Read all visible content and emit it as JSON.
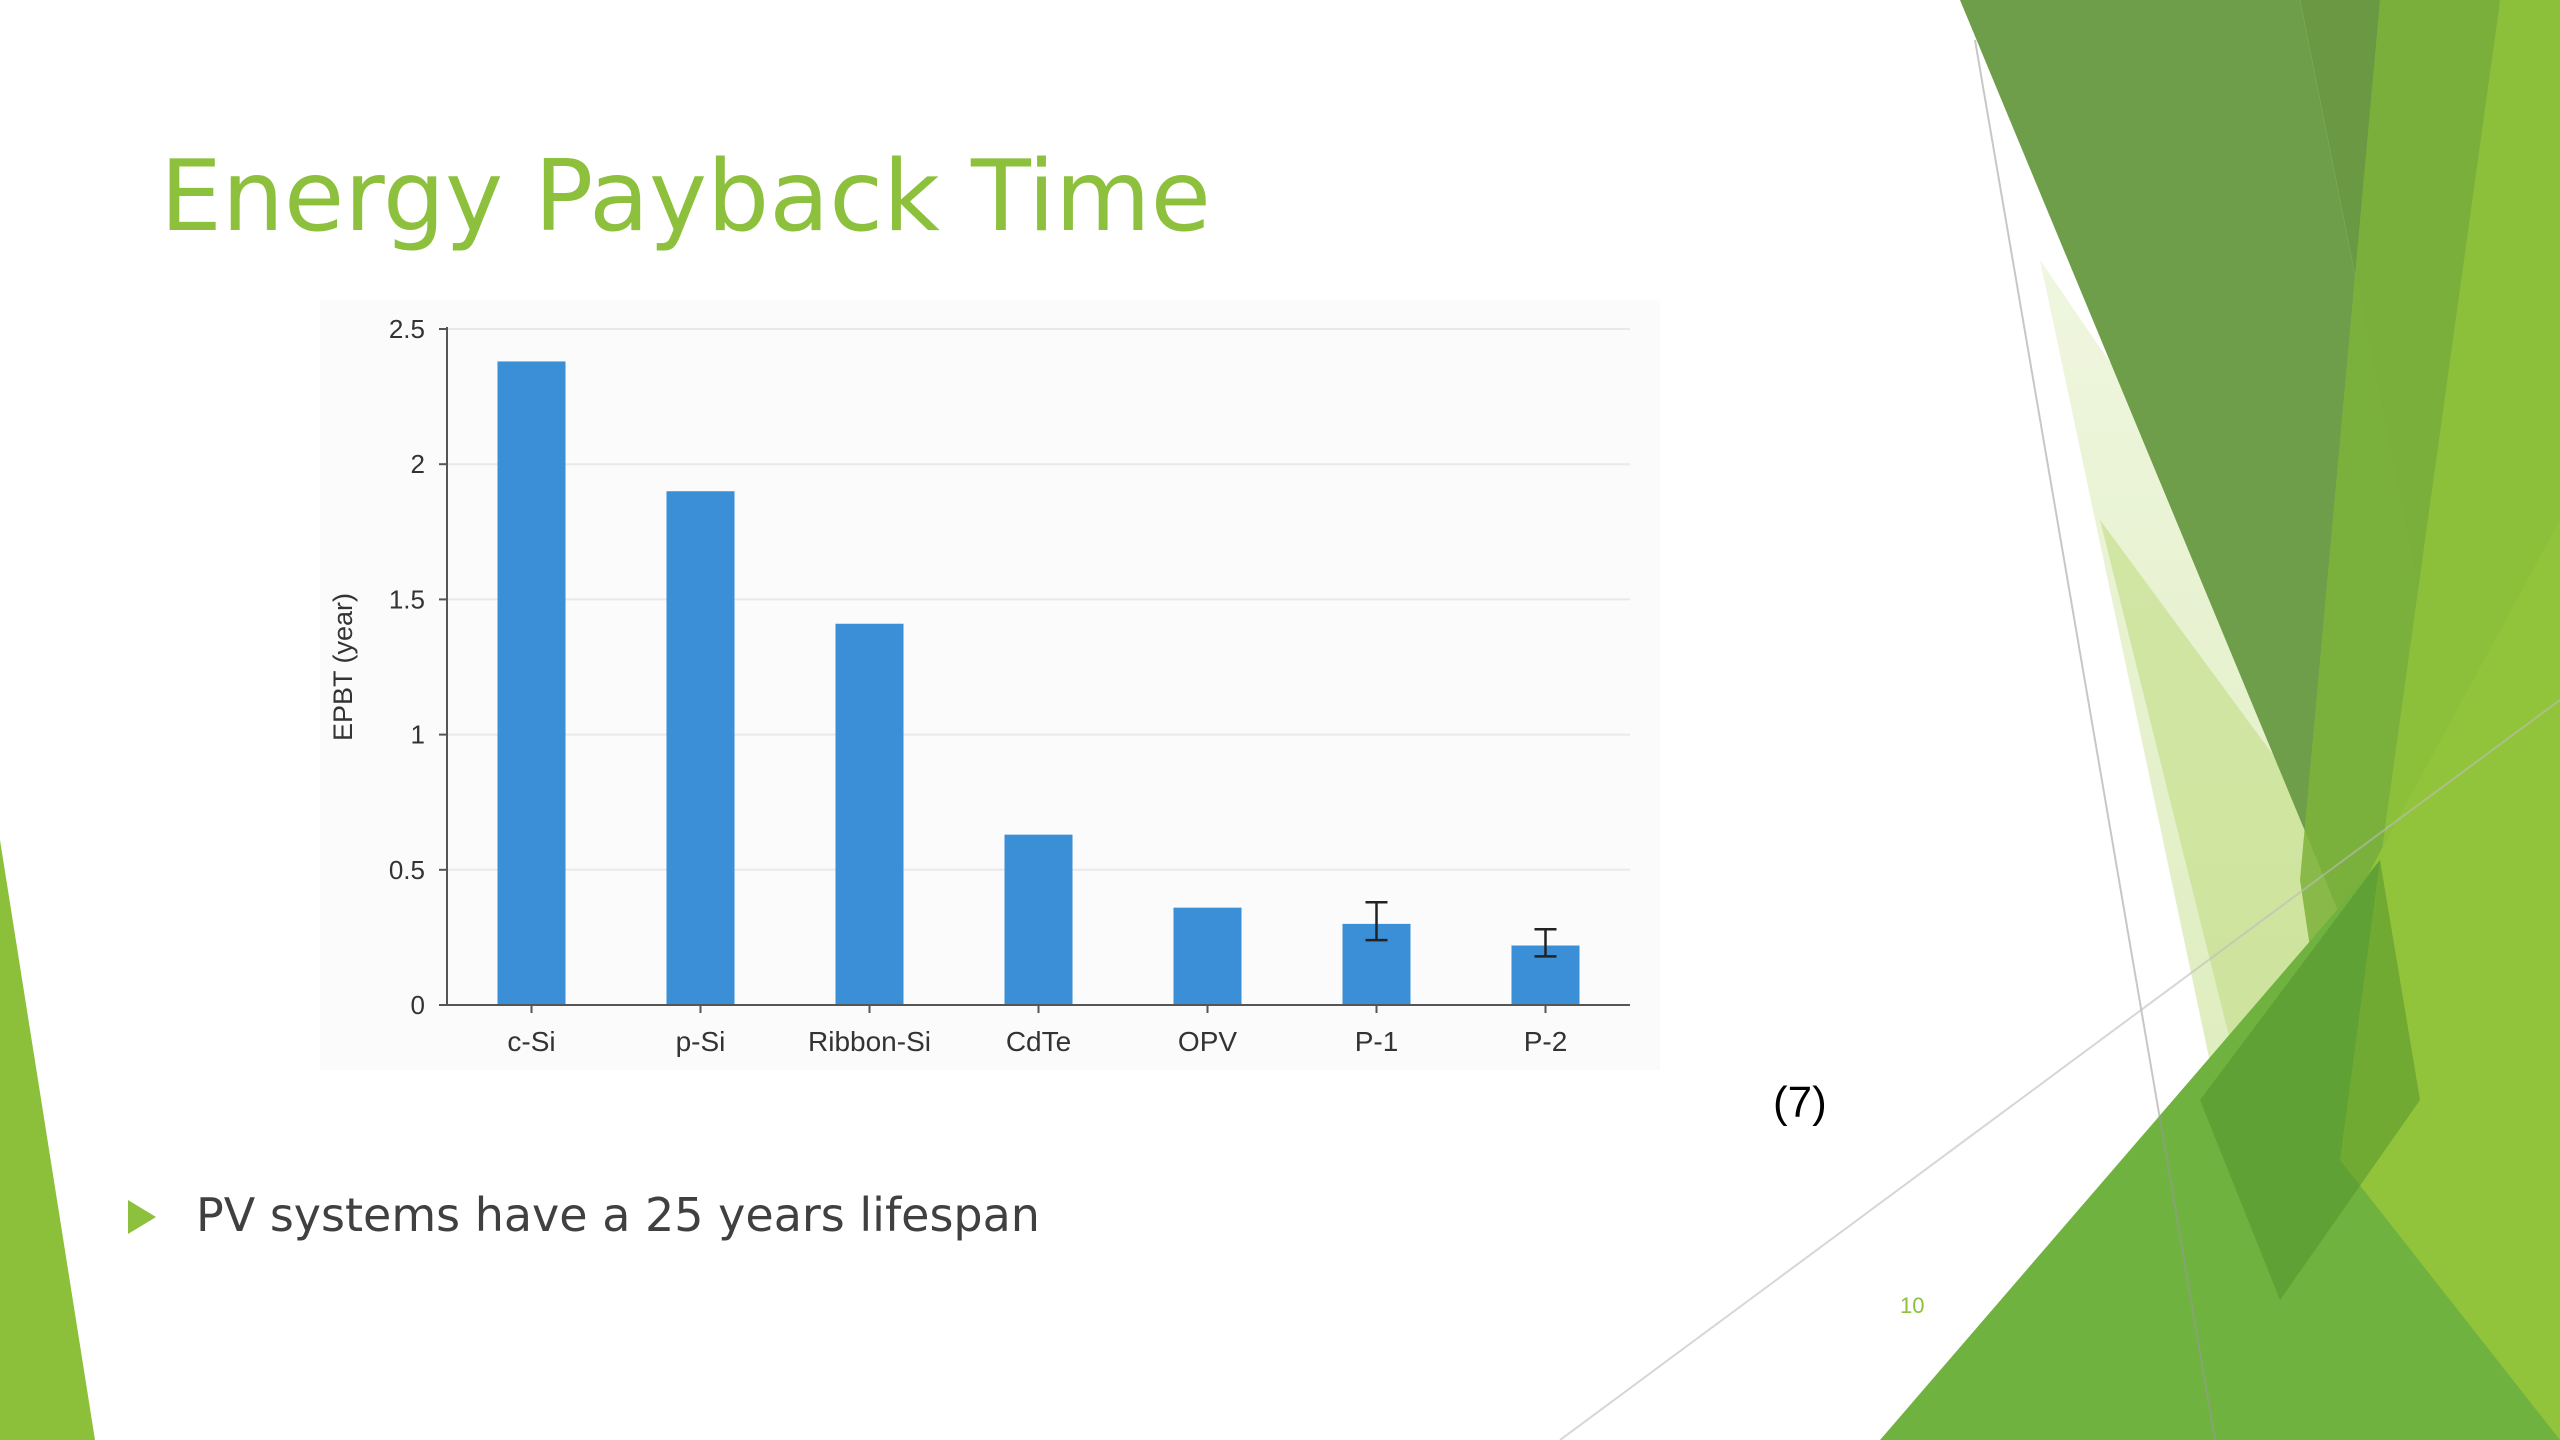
{
  "slide": {
    "title": "Energy Payback Time",
    "citation": "(7)",
    "bullet": "PV systems have a 25 years lifespan",
    "slide_number": "10",
    "accent_color": "#8dc03c"
  },
  "chart_data": {
    "type": "bar",
    "title": "",
    "xlabel": "",
    "ylabel": "EPBT (year)",
    "categories": [
      "c-Si",
      "p-Si",
      "Ribbon-Si",
      "CdTe",
      "OPV",
      "P-1",
      "P-2"
    ],
    "values": [
      2.38,
      1.9,
      1.41,
      0.63,
      0.36,
      0.3,
      0.22
    ],
    "error_bars": [
      null,
      null,
      null,
      null,
      null,
      [
        0.24,
        0.38
      ],
      [
        0.18,
        0.28
      ]
    ],
    "ylim": [
      0,
      2.5
    ],
    "yticks": [
      0,
      0.5,
      1,
      1.5,
      2,
      2.5
    ],
    "ytick_labels": [
      "0",
      "0.5",
      "1",
      "1.5",
      "2",
      "2.5"
    ],
    "grid": "horizontal",
    "bar_color": "#3a8fd6",
    "legend": "none"
  }
}
